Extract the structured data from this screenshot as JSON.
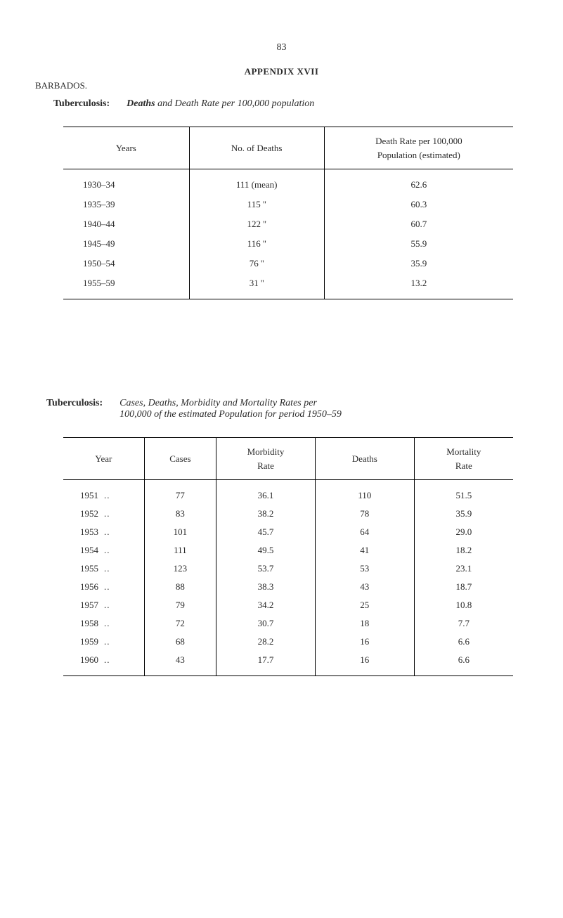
{
  "page_number": "83",
  "appendix_title": "APPENDIX XVII",
  "location": "BARBADOS.",
  "section1": {
    "label": "Tuberculosis:",
    "desc_bold": "Deaths",
    "desc_rest": " and Death Rate per 100,000 population"
  },
  "table1": {
    "headers": {
      "years": "Years",
      "deaths": "No. of Deaths",
      "rate": "Death Rate per 100,000\nPopulation (estimated)"
    },
    "rows": [
      {
        "years": "1930–34",
        "deaths": "111 (mean)",
        "rate": "62.6"
      },
      {
        "years": "1935–39",
        "deaths": "115   ''",
        "rate": "60.3"
      },
      {
        "years": "1940–44",
        "deaths": "122   ''",
        "rate": "60.7"
      },
      {
        "years": "1945–49",
        "deaths": "116   ''",
        "rate": "55.9"
      },
      {
        "years": "1950–54",
        "deaths": "76   ''",
        "rate": "35.9"
      },
      {
        "years": "1955–59",
        "deaths": "31   ''",
        "rate": "13.2"
      }
    ]
  },
  "section2": {
    "label": "Tuberculosis:",
    "desc_line1": "Cases, Deaths, Morbidity and Mortality Rates per",
    "desc_line2": "100,000 of the estimated Population for period 1950–59"
  },
  "table2": {
    "headers": {
      "year": "Year",
      "cases": "Cases",
      "morbidity": "Morbidity\nRate",
      "deaths": "Deaths",
      "mortality": "Mortality\nRate"
    },
    "rows": [
      {
        "year": "1951",
        "dots": "..",
        "cases": "77",
        "morbidity": "36.1",
        "deaths": "110",
        "mortality": "51.5"
      },
      {
        "year": "1952",
        "dots": "..",
        "cases": "83",
        "morbidity": "38.2",
        "deaths": "78",
        "mortality": "35.9"
      },
      {
        "year": "1953",
        "dots": "..",
        "cases": "101",
        "morbidity": "45.7",
        "deaths": "64",
        "mortality": "29.0"
      },
      {
        "year": "1954",
        "dots": "..",
        "cases": "111",
        "morbidity": "49.5",
        "deaths": "41",
        "mortality": "18.2"
      },
      {
        "year": "1955",
        "dots": "..",
        "cases": "123",
        "morbidity": "53.7",
        "deaths": "53",
        "mortality": "23.1"
      },
      {
        "year": "1956",
        "dots": "..",
        "cases": "88",
        "morbidity": "38.3",
        "deaths": "43",
        "mortality": "18.7"
      },
      {
        "year": "1957",
        "dots": "..",
        "cases": "79",
        "morbidity": "34.2",
        "deaths": "25",
        "mortality": "10.8"
      },
      {
        "year": "1958",
        "dots": "..",
        "cases": "72",
        "morbidity": "30.7",
        "deaths": "18",
        "mortality": "7.7"
      },
      {
        "year": "1959",
        "dots": "..",
        "cases": "68",
        "morbidity": "28.2",
        "deaths": "16",
        "mortality": "6.6"
      },
      {
        "year": "1960",
        "dots": "..",
        "cases": "43",
        "morbidity": "17.7",
        "deaths": "16",
        "mortality": "6.6"
      }
    ]
  },
  "colors": {
    "text": "#2a2a2a",
    "background": "#ffffff",
    "border": "#000000"
  }
}
